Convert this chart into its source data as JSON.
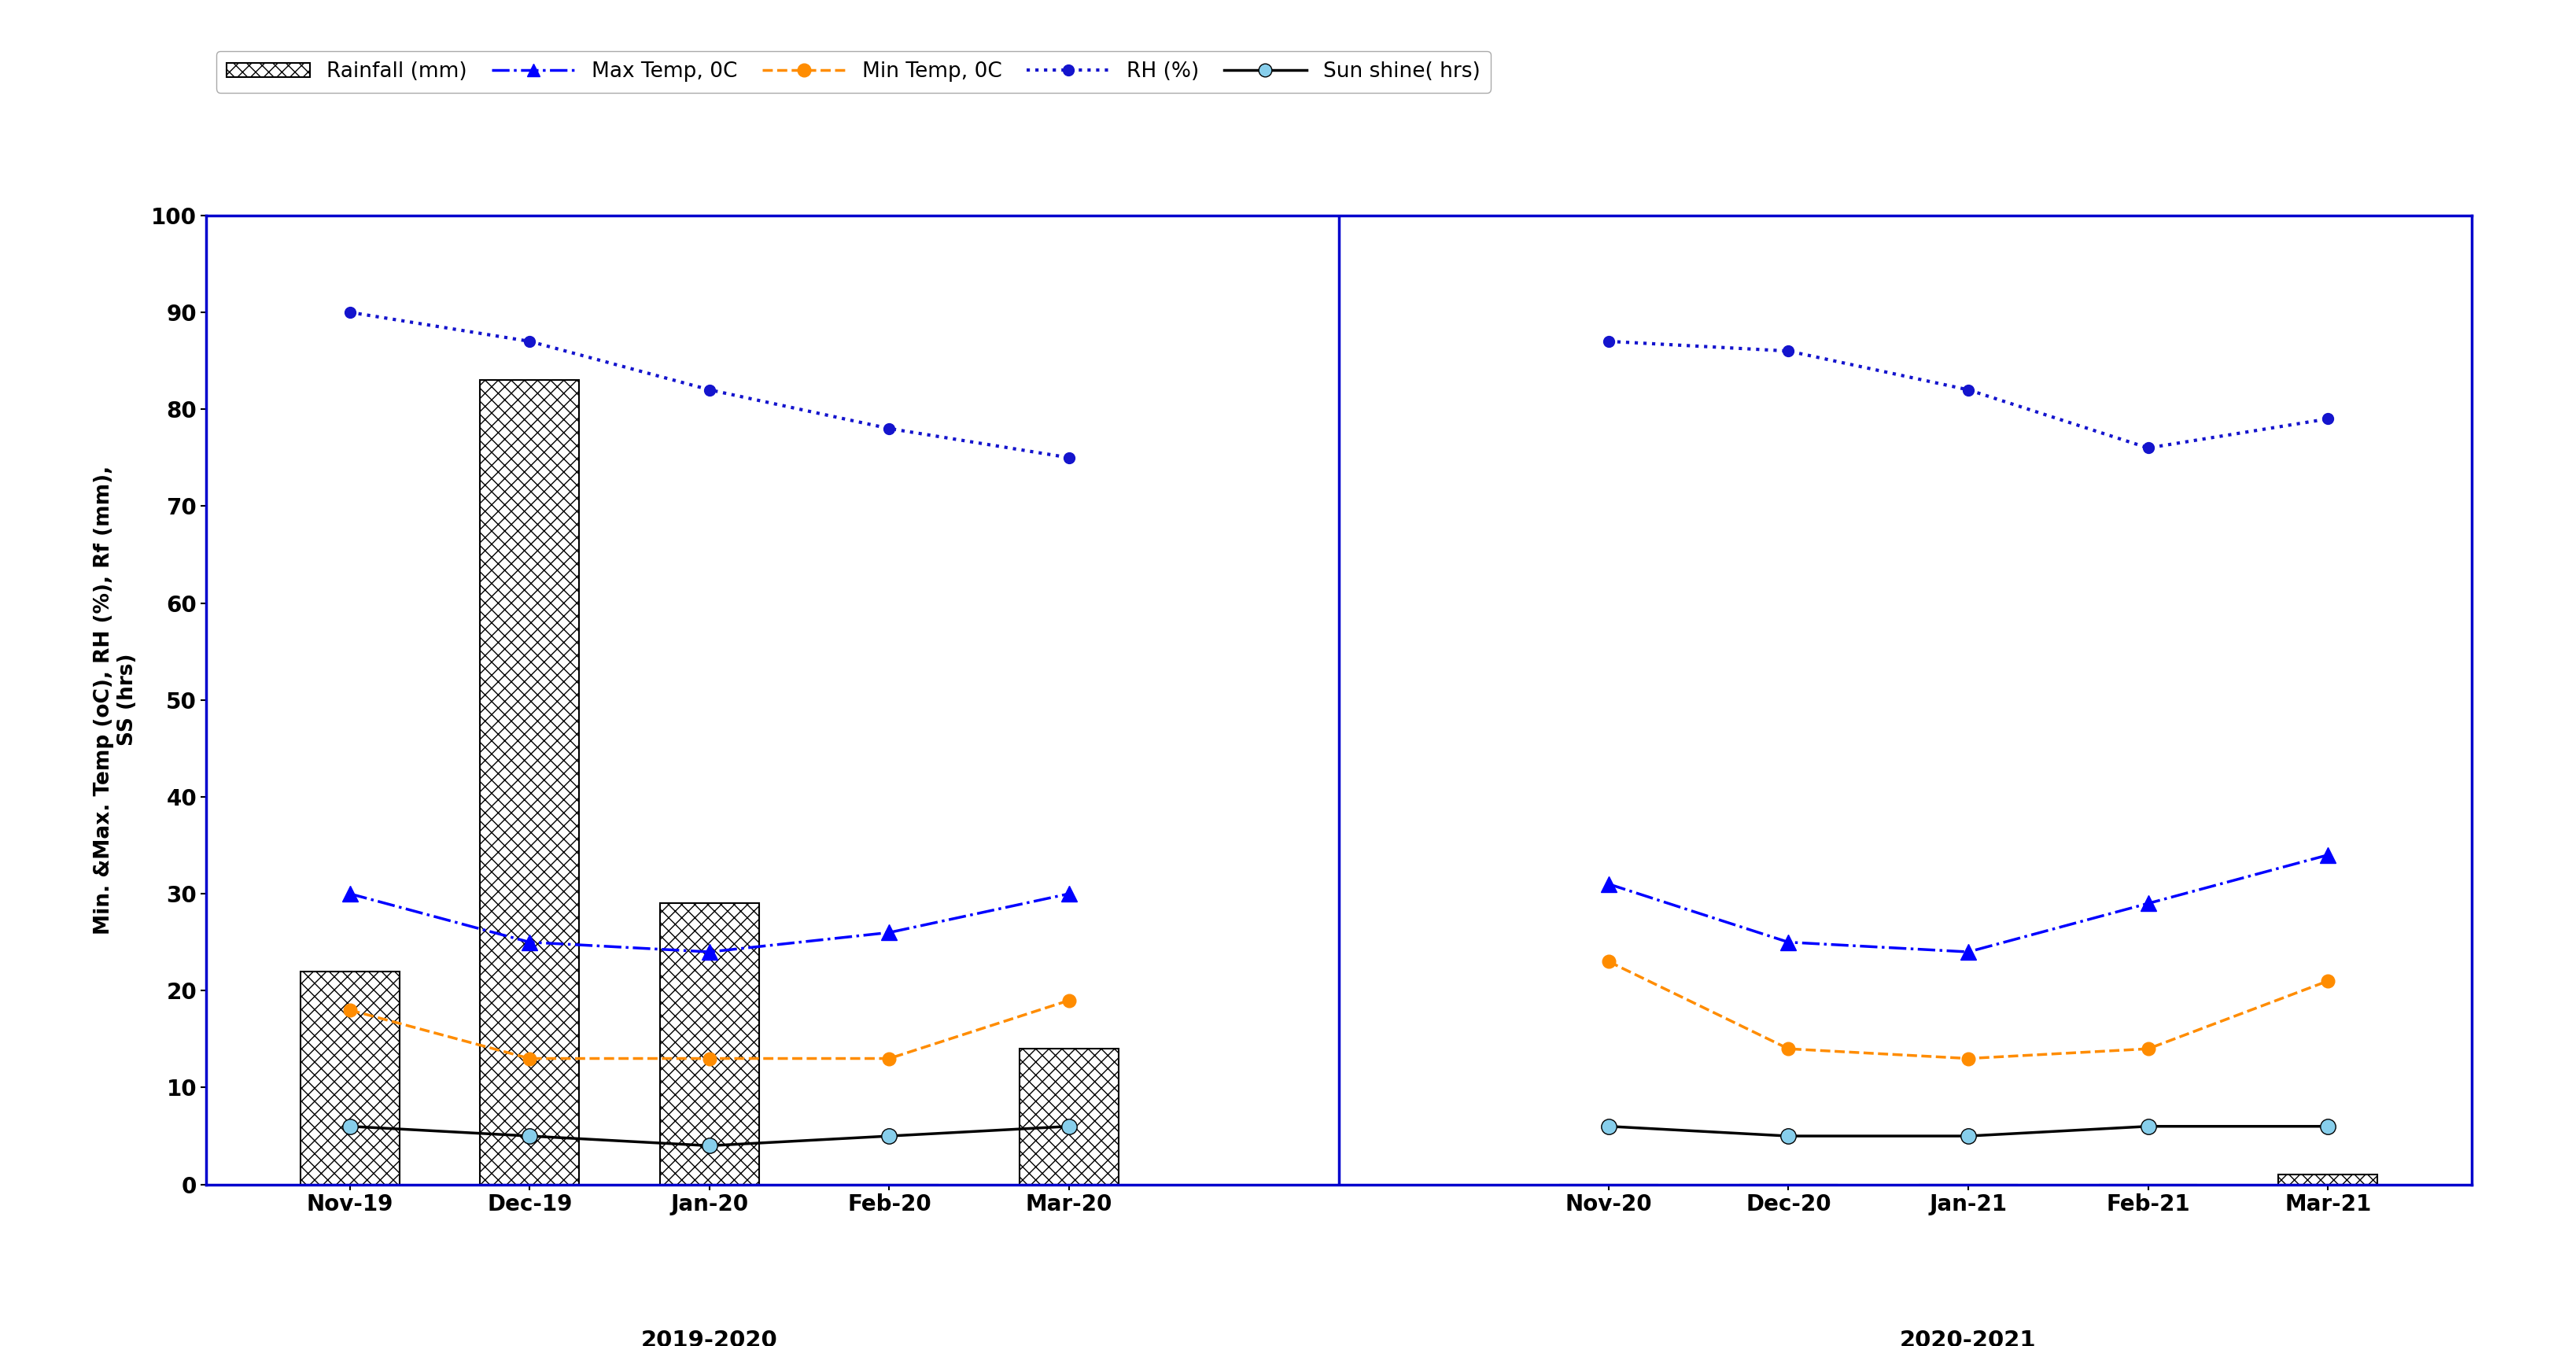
{
  "categories_2019": [
    "Nov-19",
    "Dec-19",
    "Jan-20",
    "Feb-20",
    "Mar-20"
  ],
  "categories_2020": [
    "Nov-20",
    "Dec-20",
    "Jan-21",
    "Feb-21",
    "Mar-21"
  ],
  "season_labels": [
    "2019-2020",
    "2020-2021"
  ],
  "rainfall_2019": [
    22,
    83,
    29,
    0,
    14
  ],
  "rainfall_2020": [
    0,
    0,
    0,
    0,
    1
  ],
  "max_temp_2019": [
    30,
    25,
    24,
    26,
    30
  ],
  "max_temp_2020": [
    31,
    25,
    24,
    29,
    34
  ],
  "min_temp_2019": [
    18,
    13,
    13,
    13,
    19
  ],
  "min_temp_2020": [
    23,
    14,
    13,
    14,
    21
  ],
  "rh_2019": [
    90,
    87,
    82,
    78,
    75
  ],
  "rh_2020": [
    87,
    86,
    82,
    76,
    79
  ],
  "sunshine_2019": [
    6,
    5,
    4,
    5,
    6
  ],
  "sunshine_2020": [
    6,
    5,
    5,
    6,
    6
  ],
  "ylim": [
    0,
    100
  ],
  "yticks": [
    0,
    10,
    20,
    30,
    40,
    50,
    60,
    70,
    80,
    90,
    100
  ],
  "bar_color": "#000000",
  "bar_hatch": "xx",
  "max_temp_color": "#0000FF",
  "min_temp_color": "#FF8C00",
  "rh_color": "#1414CD",
  "sunshine_color": "#000000",
  "sunshine_marker_color": "#87CEEB",
  "ylabel_top": "Min. &Max. Temp (oC), RH (%), Rf (mm),",
  "ylabel_bottom": "SS (hrs)",
  "legend_labels": [
    "Rainfall (mm)",
    "Max Temp, 0C",
    "Min Temp, 0C",
    "RH (%)",
    "Sun shine( hrs)"
  ],
  "bar_width": 0.55,
  "border_color": "#0000CD",
  "figure_bg": "#FFFFFF",
  "outer_bg": "#E8E8E8"
}
